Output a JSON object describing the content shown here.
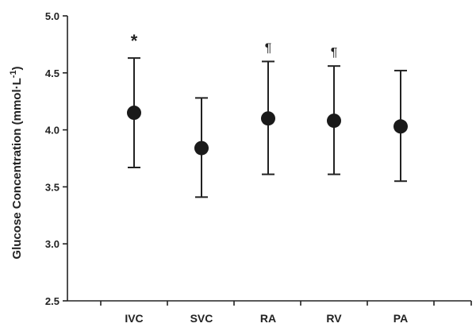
{
  "chart_data": {
    "type": "scatter",
    "categories": [
      "IVC",
      "SVC",
      "RA",
      "RV",
      "PA"
    ],
    "values": [
      4.15,
      3.84,
      4.1,
      4.08,
      4.03
    ],
    "error_upper": [
      4.63,
      4.28,
      4.6,
      4.56,
      4.52
    ],
    "error_lower": [
      3.67,
      3.41,
      3.61,
      3.61,
      3.55
    ],
    "annotations": [
      "*",
      "",
      "¶",
      "¶",
      ""
    ],
    "ylabel": "Glucose Concentration (mmol·L",
    "ylabel_superscript": "-1",
    "ylabel_close": ")",
    "ylim": [
      2.5,
      5.0
    ],
    "yticks": [
      "2.5",
      "3.0",
      "3.5",
      "4.0",
      "4.5",
      "5.0"
    ],
    "grid": false,
    "legend": "none",
    "marker_color": "#1a1a1a"
  }
}
